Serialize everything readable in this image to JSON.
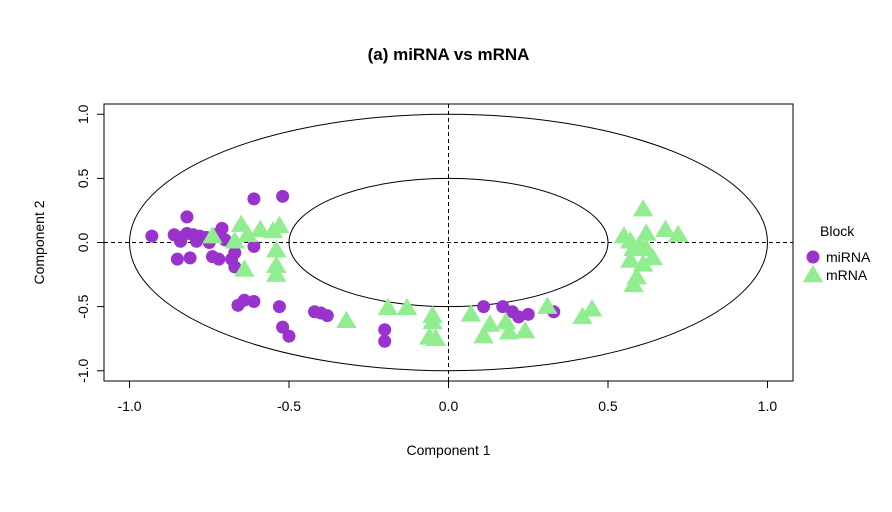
{
  "chart_data": {
    "type": "scatter",
    "title": "(a) miRNA vs mRNA",
    "xlabel": "Component  1",
    "ylabel": "Component  2",
    "xlim": [
      -1.08,
      1.08
    ],
    "ylim": [
      -1.08,
      1.08
    ],
    "xticks": [
      -1.0,
      -0.5,
      0.0,
      0.5,
      1.0
    ],
    "xtick_labels": [
      "-1.0",
      "-0.5",
      "0.0",
      "0.5",
      "1.0"
    ],
    "yticks": [
      -1.0,
      -0.5,
      0.0,
      0.5,
      1.0
    ],
    "ytick_labels": [
      "-1.0",
      "-0.5",
      "0.0",
      "0.5",
      "1.0"
    ],
    "grid": false,
    "reference_lines": {
      "x": 0,
      "y": 0,
      "style": "dashed"
    },
    "circles": [
      {
        "radius": 1.0
      },
      {
        "radius": 0.5
      }
    ],
    "legend": {
      "title": "Block",
      "placement": "right",
      "entries": [
        {
          "label": "miRNA",
          "marker": "circle",
          "color": "#9a32cd"
        },
        {
          "label": "mRNA",
          "marker": "triangle",
          "color": "#90ee90"
        }
      ]
    },
    "series": [
      {
        "name": "miRNA",
        "marker": "circle",
        "color": "#9a32cd",
        "points": [
          [
            -0.93,
            0.05
          ],
          [
            -0.86,
            0.06
          ],
          [
            -0.84,
            0.04
          ],
          [
            -0.82,
            0.07
          ],
          [
            -0.8,
            0.06
          ],
          [
            -0.78,
            0.05
          ],
          [
            -0.76,
            0.04
          ],
          [
            -0.73,
            0.06
          ],
          [
            -0.71,
            0.11
          ],
          [
            -0.82,
            0.2
          ],
          [
            -0.85,
            -0.13
          ],
          [
            -0.81,
            -0.12
          ],
          [
            -0.74,
            -0.11
          ],
          [
            -0.72,
            -0.13
          ],
          [
            -0.68,
            -0.13
          ],
          [
            -0.67,
            -0.19
          ],
          [
            -0.79,
            0.01
          ],
          [
            -0.84,
            0.01
          ],
          [
            -0.75,
            0.0
          ],
          [
            -0.7,
            0.02
          ],
          [
            -0.67,
            -0.08
          ],
          [
            -0.61,
            -0.03
          ],
          [
            -0.61,
            0.34
          ],
          [
            -0.52,
            0.36
          ],
          [
            -0.66,
            -0.49
          ],
          [
            -0.64,
            -0.45
          ],
          [
            -0.61,
            -0.46
          ],
          [
            -0.53,
            -0.5
          ],
          [
            -0.52,
            -0.66
          ],
          [
            -0.5,
            -0.73
          ],
          [
            -0.42,
            -0.54
          ],
          [
            -0.4,
            -0.55
          ],
          [
            -0.38,
            -0.57
          ],
          [
            -0.2,
            -0.68
          ],
          [
            -0.2,
            -0.77
          ],
          [
            0.11,
            -0.5
          ],
          [
            0.17,
            -0.5
          ],
          [
            0.2,
            -0.54
          ],
          [
            0.22,
            -0.58
          ],
          [
            0.25,
            -0.56
          ],
          [
            0.33,
            -0.54
          ]
        ]
      },
      {
        "name": "mRNA",
        "marker": "triangle",
        "color": "#90ee90",
        "points": [
          [
            -0.74,
            0.05
          ],
          [
            -0.65,
            0.14
          ],
          [
            -0.63,
            0.06
          ],
          [
            -0.59,
            0.1
          ],
          [
            -0.55,
            0.09
          ],
          [
            -0.53,
            0.13
          ],
          [
            -0.67,
            0.01
          ],
          [
            -0.64,
            -0.21
          ],
          [
            -0.54,
            -0.06
          ],
          [
            -0.54,
            -0.18
          ],
          [
            -0.54,
            -0.25
          ],
          [
            -0.32,
            -0.61
          ],
          [
            -0.19,
            -0.51
          ],
          [
            -0.13,
            -0.51
          ],
          [
            -0.05,
            -0.57
          ],
          [
            -0.05,
            -0.62
          ],
          [
            -0.04,
            -0.75
          ],
          [
            -0.06,
            -0.74
          ],
          [
            0.07,
            -0.56
          ],
          [
            0.11,
            -0.73
          ],
          [
            0.13,
            -0.64
          ],
          [
            0.18,
            -0.62
          ],
          [
            0.19,
            -0.7
          ],
          [
            0.24,
            -0.69
          ],
          [
            0.31,
            -0.5
          ],
          [
            0.42,
            -0.58
          ],
          [
            0.45,
            -0.52
          ],
          [
            0.55,
            0.05
          ],
          [
            0.57,
            0.01
          ],
          [
            0.58,
            -0.05
          ],
          [
            0.6,
            -0.02
          ],
          [
            0.62,
            0.07
          ],
          [
            0.62,
            -0.05
          ],
          [
            0.64,
            -0.12
          ],
          [
            0.61,
            -0.17
          ],
          [
            0.59,
            -0.27
          ],
          [
            0.58,
            -0.33
          ],
          [
            0.61,
            0.26
          ],
          [
            0.57,
            -0.14
          ],
          [
            0.68,
            0.1
          ],
          [
            0.72,
            0.06
          ]
        ]
      }
    ]
  }
}
